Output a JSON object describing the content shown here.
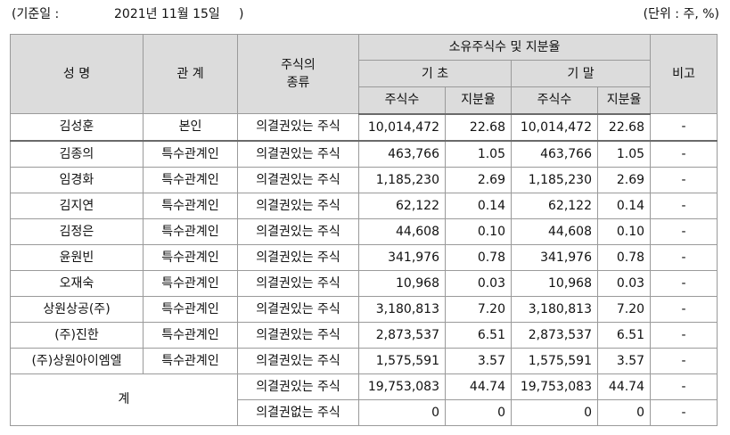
{
  "top": {
    "basis_label": "(기준일 :",
    "basis_date": "2021년 11월 15일",
    "basis_close": ")",
    "unit": "(단위 : 주, %)"
  },
  "header": {
    "name": "성 명",
    "relation": "관 계",
    "stock_type": "주식의\n종류",
    "ownership": "소유주식수 및 지분율",
    "start": "기 초",
    "end": "기 말",
    "shares": "주식수",
    "ratio": "지분율",
    "note": "비고"
  },
  "rows": [
    {
      "name": "김성훈",
      "relation": "본인",
      "type": "의결권있는 주식",
      "start_shares": "10,014,472",
      "start_ratio": "22.68",
      "end_shares": "10,014,472",
      "end_ratio": "22.68",
      "note": "-"
    },
    {
      "name": "김종의",
      "relation": "특수관계인",
      "type": "의결권있는 주식",
      "start_shares": "463,766",
      "start_ratio": "1.05",
      "end_shares": "463,766",
      "end_ratio": "1.05",
      "note": "-"
    },
    {
      "name": "임경화",
      "relation": "특수관계인",
      "type": "의결권있는 주식",
      "start_shares": "1,185,230",
      "start_ratio": "2.69",
      "end_shares": "1,185,230",
      "end_ratio": "2.69",
      "note": "-"
    },
    {
      "name": "김지연",
      "relation": "특수관계인",
      "type": "의결권있는 주식",
      "start_shares": "62,122",
      "start_ratio": "0.14",
      "end_shares": "62,122",
      "end_ratio": "0.14",
      "note": "-"
    },
    {
      "name": "김정은",
      "relation": "특수관계인",
      "type": "의결권있는 주식",
      "start_shares": "44,608",
      "start_ratio": "0.10",
      "end_shares": "44,608",
      "end_ratio": "0.10",
      "note": "-"
    },
    {
      "name": "윤원빈",
      "relation": "특수관계인",
      "type": "의결권있는 주식",
      "start_shares": "341,976",
      "start_ratio": "0.78",
      "end_shares": "341,976",
      "end_ratio": "0.78",
      "note": "-"
    },
    {
      "name": "오재숙",
      "relation": "특수관계인",
      "type": "의결권있는 주식",
      "start_shares": "10,968",
      "start_ratio": "0.03",
      "end_shares": "10,968",
      "end_ratio": "0.03",
      "note": "-"
    },
    {
      "name": "상원상공(주)",
      "relation": "특수관계인",
      "type": "의결권있는 주식",
      "start_shares": "3,180,813",
      "start_ratio": "7.20",
      "end_shares": "3,180,813",
      "end_ratio": "7.20",
      "note": "-"
    },
    {
      "name": "(주)진한",
      "relation": "특수관계인",
      "type": "의결권있는 주식",
      "start_shares": "2,873,537",
      "start_ratio": "6.51",
      "end_shares": "2,873,537",
      "end_ratio": "6.51",
      "note": "-"
    },
    {
      "name": "(주)상원아이엠엘",
      "relation": "특수관계인",
      "type": "의결권있는 주식",
      "start_shares": "1,575,591",
      "start_ratio": "3.57",
      "end_shares": "1,575,591",
      "end_ratio": "3.57",
      "note": "-"
    }
  ],
  "total": {
    "label": "계",
    "voting": {
      "type": "의결권있는 주식",
      "start_shares": "19,753,083",
      "start_ratio": "44.74",
      "end_shares": "19,753,083",
      "end_ratio": "44.74",
      "note": "-"
    },
    "nonvoting": {
      "type": "의결권없는 주식",
      "start_shares": "0",
      "start_ratio": "0",
      "end_shares": "0",
      "end_ratio": "0",
      "note": "-"
    }
  }
}
